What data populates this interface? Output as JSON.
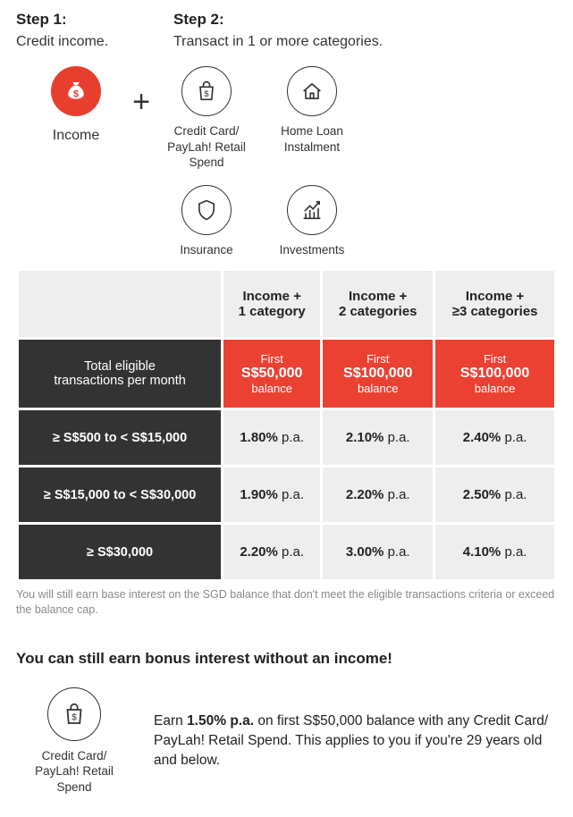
{
  "steps": {
    "step1": {
      "title": "Step 1:",
      "subtitle": "Credit income."
    },
    "step2": {
      "title": "Step 2:",
      "subtitle": "Transact in 1 or more categories."
    }
  },
  "income_label": "Income",
  "categories": {
    "credit_card": "Credit Card/\nPayLah! Retail Spend",
    "home_loan": "Home Loan\nInstalment",
    "insurance": "Insurance",
    "investments": "Investments"
  },
  "table": {
    "headers": [
      {
        "line1": "Income +",
        "line2": "1 category"
      },
      {
        "line1": "Income +",
        "line2": "2 categories"
      },
      {
        "line1": "Income +",
        "line2": "≥3 categories"
      }
    ],
    "row_title_label": "Total eligible\ntransactions per month",
    "balance_caps": [
      {
        "prefix": "First",
        "amount": "S$50,000",
        "suffix": "balance"
      },
      {
        "prefix": "First",
        "amount": "S$100,000",
        "suffix": "balance"
      },
      {
        "prefix": "First",
        "amount": "S$100,000",
        "suffix": "balance"
      }
    ],
    "rows": [
      {
        "label": "≥ S$500 to < S$15,000",
        "rates": [
          "1.80%",
          "2.10%",
          "2.40%"
        ]
      },
      {
        "label": "≥ S$15,000 to < S$30,000",
        "rates": [
          "1.90%",
          "2.20%",
          "2.50%"
        ]
      },
      {
        "label": "≥ S$30,000",
        "rates": [
          "2.20%",
          "3.00%",
          "4.10%"
        ]
      }
    ],
    "pa_suffix": " p.a.",
    "footnote": "You will still earn base interest on the SGD balance that don't meet the eligible transactions criteria or exceed the balance cap."
  },
  "bonus": {
    "title": "You can still earn bonus interest without an income!",
    "icon_label": "Credit Card/\nPayLah! Retail Spend",
    "text_before": "Earn ",
    "rate": "1.50% p.a.",
    "text_after": " on first S$50,000 balance with any Credit Card/ PayLah! Retail Spend. This applies to you if you're 29 years old and below."
  },
  "colors": {
    "brand_red": "#eb4133",
    "icon_fill_red": "#e83e2e",
    "dark": "#333333",
    "cell_bg": "#eeeeee",
    "text": "#222222",
    "footnote_grey": "#8a8a8a",
    "white": "#ffffff"
  }
}
